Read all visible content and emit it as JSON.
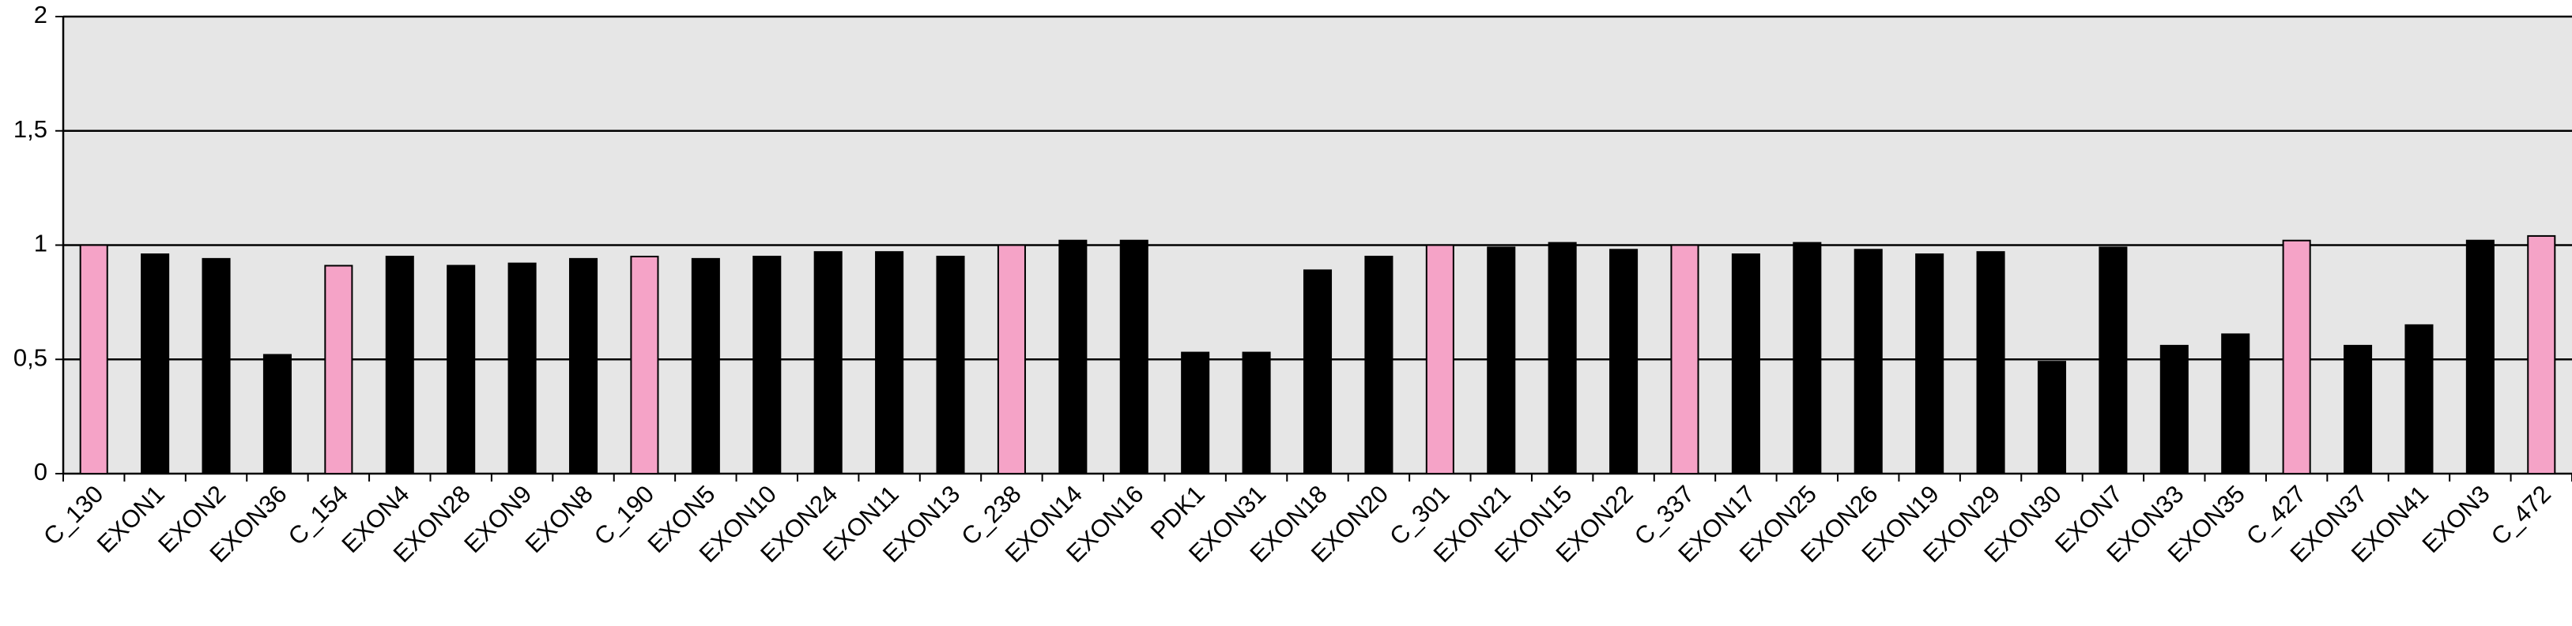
{
  "chart_data": {
    "type": "bar",
    "categories": [
      "C_130",
      "EXON1",
      "EXON2",
      "EXON36",
      "C_154",
      "EXON4",
      "EXON28",
      "EXON9",
      "EXON8",
      "C_190",
      "EXON5",
      "EXON10",
      "EXON24",
      "EXON11",
      "EXON13",
      "C_238",
      "EXON14",
      "EXON16",
      "PDK1",
      "EXON31",
      "EXON18",
      "EXON20",
      "C_301",
      "EXON21",
      "EXON15",
      "EXON22",
      "C_337",
      "EXON17",
      "EXON25",
      "EXON26",
      "EXON19",
      "EXON29",
      "EXON30",
      "EXON7",
      "EXON33",
      "EXON35",
      "C_427",
      "EXON37",
      "EXON41",
      "EXON3",
      "C_472"
    ],
    "values": [
      1.0,
      0.96,
      0.94,
      0.52,
      0.91,
      0.95,
      0.91,
      0.92,
      0.94,
      0.95,
      0.94,
      0.95,
      0.97,
      0.97,
      0.95,
      1.0,
      1.02,
      1.02,
      0.53,
      0.53,
      0.89,
      0.95,
      1.0,
      0.99,
      1.01,
      0.98,
      1.0,
      0.96,
      1.01,
      0.98,
      0.96,
      0.97,
      0.49,
      0.99,
      0.56,
      0.61,
      1.02,
      0.56,
      0.65,
      1.02,
      1.04
    ],
    "colors": [
      "#f5a3c7",
      "#000000",
      "#000000",
      "#000000",
      "#f5a3c7",
      "#000000",
      "#000000",
      "#000000",
      "#000000",
      "#f5a3c7",
      "#000000",
      "#000000",
      "#000000",
      "#000000",
      "#000000",
      "#f5a3c7",
      "#000000",
      "#000000",
      "#000000",
      "#000000",
      "#000000",
      "#000000",
      "#f5a3c7",
      "#000000",
      "#000000",
      "#000000",
      "#f5a3c7",
      "#000000",
      "#000000",
      "#000000",
      "#000000",
      "#000000",
      "#000000",
      "#000000",
      "#000000",
      "#000000",
      "#f5a3c7",
      "#000000",
      "#000000",
      "#000000",
      "#f5a3c7"
    ],
    "ylim": [
      0,
      2
    ],
    "yticks": [
      0,
      {
        "value": 0.5,
        "label": "0,5"
      },
      1,
      {
        "value": 1.5,
        "label": "1,5"
      },
      2
    ],
    "grid": true
  }
}
